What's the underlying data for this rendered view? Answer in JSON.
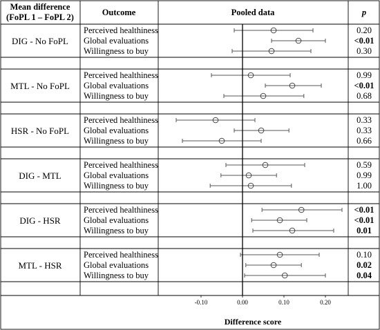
{
  "headers": {
    "col1_line1": "Mean difference",
    "col1_line2": "(FoPL 1 – FoPL 2)",
    "col2": "Outcome",
    "col3": "Pooled data",
    "col4": "p"
  },
  "chart_data": {
    "type": "forest",
    "xlabel": "Difference score",
    "xlim": [
      -0.19,
      0.26
    ],
    "xticks": [
      "-0.10",
      "0.00",
      "0.10",
      "0.20"
    ],
    "xtick_values": [
      -0.1,
      0.0,
      0.1,
      0.2
    ],
    "reference_line": 0,
    "groups": [
      {
        "label": "DIG - No FoPL",
        "rows": [
          {
            "outcome": "Perceived healthiness",
            "estimate": 0.075,
            "ci": [
              -0.02,
              0.17
            ],
            "p": "0.20",
            "bold": false
          },
          {
            "outcome": "Global evaluations",
            "estimate": 0.135,
            "ci": [
              0.07,
              0.2
            ],
            "p": "<0.01",
            "bold": true
          },
          {
            "outcome": "Willingness to buy",
            "estimate": 0.07,
            "ci": [
              -0.025,
              0.165
            ],
            "p": "0.30",
            "bold": false
          }
        ]
      },
      {
        "label": "MTL - No FoPL",
        "rows": [
          {
            "outcome": "Perceived healthiness",
            "estimate": 0.02,
            "ci": [
              -0.075,
              0.115
            ],
            "p": "0.99",
            "bold": false
          },
          {
            "outcome": "Global evaluations",
            "estimate": 0.12,
            "ci": [
              0.055,
              0.19
            ],
            "p": "<0.01",
            "bold": true
          },
          {
            "outcome": "Willingness to buy",
            "estimate": 0.05,
            "ci": [
              -0.045,
              0.148
            ],
            "p": "0.68",
            "bold": false
          }
        ]
      },
      {
        "label": "HSR - No FoPL",
        "rows": [
          {
            "outcome": "Perceived healthiness",
            "estimate": -0.065,
            "ci": [
              -0.16,
              0.03
            ],
            "p": "0.33",
            "bold": false
          },
          {
            "outcome": "Global evaluations",
            "estimate": 0.045,
            "ci": [
              -0.02,
              0.112
            ],
            "p": "0.33",
            "bold": false
          },
          {
            "outcome": "Willingness to buy",
            "estimate": -0.05,
            "ci": [
              -0.145,
              0.045
            ],
            "p": "0.66",
            "bold": false
          }
        ]
      },
      {
        "label": "DIG - MTL",
        "rows": [
          {
            "outcome": "Perceived healthiness",
            "estimate": 0.055,
            "ci": [
              -0.04,
              0.15
            ],
            "p": "0.59",
            "bold": false
          },
          {
            "outcome": "Global evaluations",
            "estimate": 0.015,
            "ci": [
              -0.052,
              0.082
            ],
            "p": "0.99",
            "bold": false
          },
          {
            "outcome": "Willingness to buy",
            "estimate": 0.02,
            "ci": [
              -0.078,
              0.118
            ],
            "p": "1.00",
            "bold": false
          }
        ]
      },
      {
        "label": "DIG - HSR",
        "rows": [
          {
            "outcome": "Perceived healthiness",
            "estimate": 0.142,
            "ci": [
              0.047,
              0.24
            ],
            "p": "<0.01",
            "bold": true
          },
          {
            "outcome": "Global evaluations",
            "estimate": 0.09,
            "ci": [
              0.022,
              0.155
            ],
            "p": "<0.01",
            "bold": true
          },
          {
            "outcome": "Willingness to buy",
            "estimate": 0.12,
            "ci": [
              0.025,
              0.22
            ],
            "p": "0.01",
            "bold": true
          }
        ]
      },
      {
        "label": "MTL - HSR",
        "rows": [
          {
            "outcome": "Perceived healthiness",
            "estimate": 0.09,
            "ci": [
              -0.005,
              0.185
            ],
            "p": "0.10",
            "bold": false
          },
          {
            "outcome": "Global evaluations",
            "estimate": 0.075,
            "ci": [
              0.008,
              0.142
            ],
            "p": "0.02",
            "bold": true
          },
          {
            "outcome": "Willingness to buy",
            "estimate": 0.102,
            "ci": [
              0.005,
              0.2
            ],
            "p": "0.04",
            "bold": true
          }
        ]
      }
    ]
  }
}
